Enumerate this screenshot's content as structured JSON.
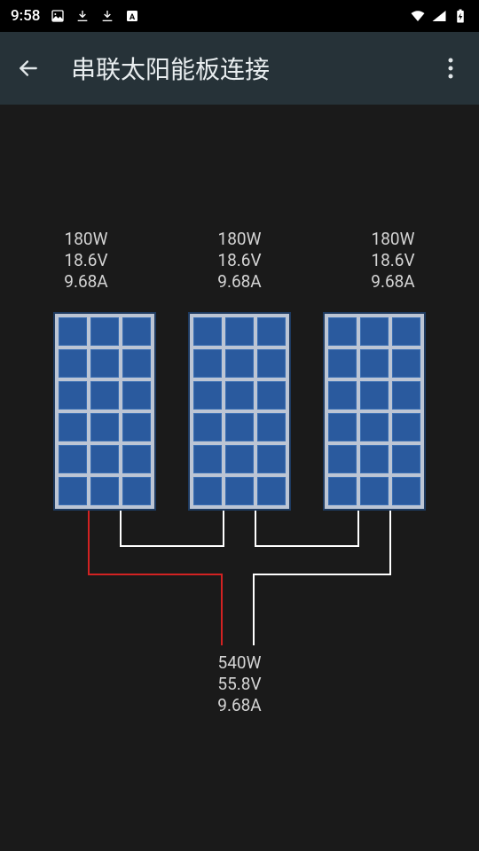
{
  "status_bar": {
    "time": "9:58",
    "icons_left": [
      "image-icon",
      "download-icon",
      "download-icon",
      "letter-a-icon"
    ],
    "icons_right": [
      "wifi-icon",
      "signal-icon",
      "battery-icon"
    ]
  },
  "app_bar": {
    "title": "串联太阳能板连接"
  },
  "diagram": {
    "type": "infographic",
    "background_color": "#1a1a1a",
    "panel_count": 3,
    "panel_grid": {
      "cols": 3,
      "rows": 6
    },
    "panel_colors": {
      "frame": "#bcc5d4",
      "cell_fill": "#2a5a9e",
      "cell_border": "#3b6fb3",
      "outer_border": "#1e3a5f"
    },
    "panel_specs": [
      {
        "watts": "180W",
        "volts": "18.6V",
        "amps": "9.68A"
      },
      {
        "watts": "180W",
        "volts": "18.6V",
        "amps": "9.68A"
      },
      {
        "watts": "180W",
        "volts": "18.6V",
        "amps": "9.68A"
      }
    ],
    "wire_colors": {
      "positive": "#d22222",
      "neutral": "#ffffff"
    },
    "wire_width": 2,
    "output": {
      "watts": "540W",
      "volts": "55.8V",
      "amps": "9.68A"
    },
    "label_fontsize": 19,
    "label_color": "#d4d4d4"
  }
}
